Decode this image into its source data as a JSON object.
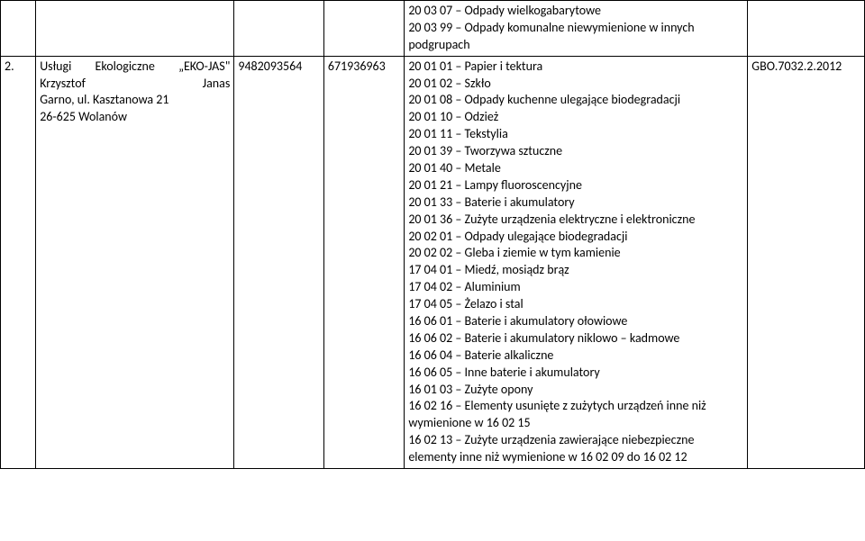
{
  "row1": {
    "col5": "20 03 07 – Odpady wielkogabarytowe\n20 03 99 – Odpady komunalne niewymienione w innych podgrupach"
  },
  "row2": {
    "num": "2.",
    "company_line1": "Usługi Ekologiczne „EKO-JAS\" Krzysztof Janas",
    "company_line2": "Garno, ul. Kasztanowa 21",
    "company_line3": "26-625 Wolanów",
    "nip": "9482093564",
    "regon": "671936963",
    "codes": "20 01 01 – Papier i tektura\n20 01 02 – Szkło\n20 01 08 – Odpady kuchenne ulegające biodegradacji\n20 01 10 – Odzież\n20 01 11 – Tekstylia\n20 01 39 – Tworzywa sztuczne\n20 01 40 – Metale\n20 01 21 – Lampy fluoroscencyjne\n20 01 33 – Baterie i akumulatory\n20 01 36 – Zużyte urządzenia elektryczne i elektroniczne\n20 02 01 – Odpady ulegające biodegradacji\n20 02 02 – Gleba i ziemie w tym kamienie\n17 04 01 – Miedź, mosiądz brąz\n17 04 02 – Aluminium\n17 04 05 – Żelazo i stal\n16 06 01 – Baterie i akumulatory ołowiowe\n16 06 02 – Baterie i akumulatory niklowo – kadmowe\n16 06 04 – Baterie alkaliczne\n16 06 05 – Inne baterie i akumulatory\n16 01 03 – Zużyte opony\n16 02 16 – Elementy usunięte z zużytych urządzeń inne niż wymienione w 16 02 15\n16 02 13 – Zużyte urządzenia zawierające niebezpieczne elementy inne niż wymienione w 16 02 09 do 16 02 12",
    "ref": "GBO.7032.2.2012"
  }
}
